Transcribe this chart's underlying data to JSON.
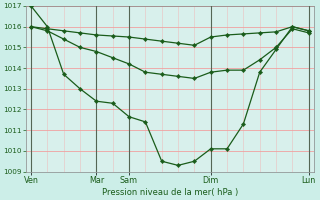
{
  "background_color": "#cceee8",
  "plot_bg_color": "#d8f0ec",
  "grid_color_h": "#f0a0a0",
  "grid_color_v": "#e8c8c8",
  "line_color": "#1a5c1a",
  "xlabel": "Pression niveau de la mer( hPa )",
  "ylim": [
    1009,
    1017
  ],
  "yticks": [
    1009,
    1010,
    1011,
    1012,
    1013,
    1014,
    1015,
    1016,
    1017
  ],
  "xtick_labels": [
    "Ven",
    "",
    "Mar",
    "Sam",
    "",
    "Dim",
    "",
    "Lun"
  ],
  "xtick_pos": [
    0,
    2,
    4,
    6,
    9,
    11,
    14,
    17
  ],
  "vline_pos": [
    0,
    4,
    6,
    11,
    17
  ],
  "vline_labels": [
    "Ven",
    "Mar",
    "Sam",
    "Dim",
    "Lun"
  ],
  "total_points": 18,
  "line1_x": [
    0,
    1,
    2,
    3,
    4,
    5,
    6,
    7,
    8,
    9,
    10,
    11,
    12,
    13,
    14,
    15,
    16,
    17
  ],
  "line1_y": [
    1016.0,
    1015.9,
    1015.8,
    1015.7,
    1015.6,
    1015.55,
    1015.5,
    1015.4,
    1015.3,
    1015.2,
    1015.1,
    1015.5,
    1015.6,
    1015.65,
    1015.7,
    1015.75,
    1016.0,
    1015.8
  ],
  "line2_x": [
    0,
    1,
    2,
    3,
    4,
    5,
    6,
    7,
    8,
    9,
    10,
    11,
    12,
    13,
    14,
    15,
    16,
    17
  ],
  "line2_y": [
    1016.0,
    1015.8,
    1015.4,
    1015.0,
    1014.8,
    1014.5,
    1014.2,
    1013.8,
    1013.7,
    1013.6,
    1013.5,
    1013.8,
    1013.9,
    1013.9,
    1014.4,
    1015.0,
    1015.9,
    1015.7
  ],
  "line3_x": [
    0,
    1,
    2,
    3,
    4,
    5,
    6,
    7,
    8,
    9,
    10,
    11,
    12,
    13,
    14,
    15,
    16,
    17
  ],
  "line3_y": [
    1017.0,
    1016.0,
    1013.7,
    1013.0,
    1012.4,
    1012.3,
    1011.65,
    1011.4,
    1009.5,
    1009.3,
    1009.5,
    1010.1,
    1010.1,
    1011.3,
    1013.8,
    1014.9,
    1016.0,
    1015.8
  ]
}
